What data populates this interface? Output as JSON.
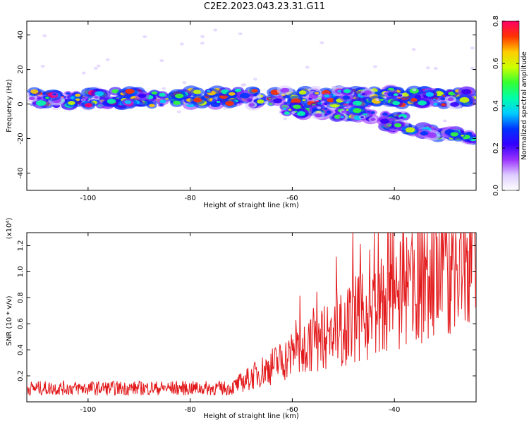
{
  "title": "C2E2.2023.043.23.31.G11",
  "colors": {
    "snr_line": "#e31a1c",
    "axis": "#000000",
    "colorbar_stops": [
      "#ffffff",
      "#ddccff",
      "#9933ff",
      "#3300ff",
      "#0033ff",
      "#00ccff",
      "#00ffaa",
      "#33ff33",
      "#ccff00",
      "#ffcc00",
      "#ff3300",
      "#ff0066"
    ]
  },
  "chart_data": [
    {
      "type": "heatmap",
      "title": "C2E2.2023.043.23.31.G11",
      "xlabel": "Height of straight line (km)",
      "ylabel": "Frequency (Hz)",
      "xlim": [
        -112,
        -24
      ],
      "ylim": [
        -50,
        48
      ],
      "xticks": [
        -100,
        -80,
        -60,
        -40
      ],
      "yticks": [
        -40,
        -20,
        0,
        20,
        40
      ],
      "colorbar": {
        "label": "Normalized spectral amplitude",
        "range": [
          0.0,
          0.8
        ],
        "ticks": [
          "0.0",
          "0.2",
          "0.4",
          "0.6",
          "0.8"
        ]
      },
      "bands": [
        {
          "name": "main",
          "x": [
            -111,
            -24
          ],
          "y": [
            3,
            4
          ]
        },
        {
          "name": "lower-branch-1",
          "x": [
            -62,
            -38
          ],
          "y": [
            -3,
            -8
          ]
        },
        {
          "name": "lower-branch-2",
          "x": [
            -42,
            -24
          ],
          "y": [
            -12,
            -20
          ]
        }
      ]
    },
    {
      "type": "line",
      "xlabel": "Height of straight line (km)",
      "ylabel": "SNR (10 * v/v)",
      "y_multiplier": "(x10⁴)",
      "xlim": [
        -112,
        -24
      ],
      "ylim": [
        0,
        1.3
      ],
      "xticks": [
        -100,
        -80,
        -60,
        -40
      ],
      "yticks": [
        "0.2",
        "0.4",
        "0.6",
        "0.8",
        "1.0",
        "1.2"
      ],
      "summary": {
        "baseline_low": 0.1,
        "peak": 1.3,
        "peak_x": -24.5,
        "rise_start_x": -72
      }
    }
  ]
}
